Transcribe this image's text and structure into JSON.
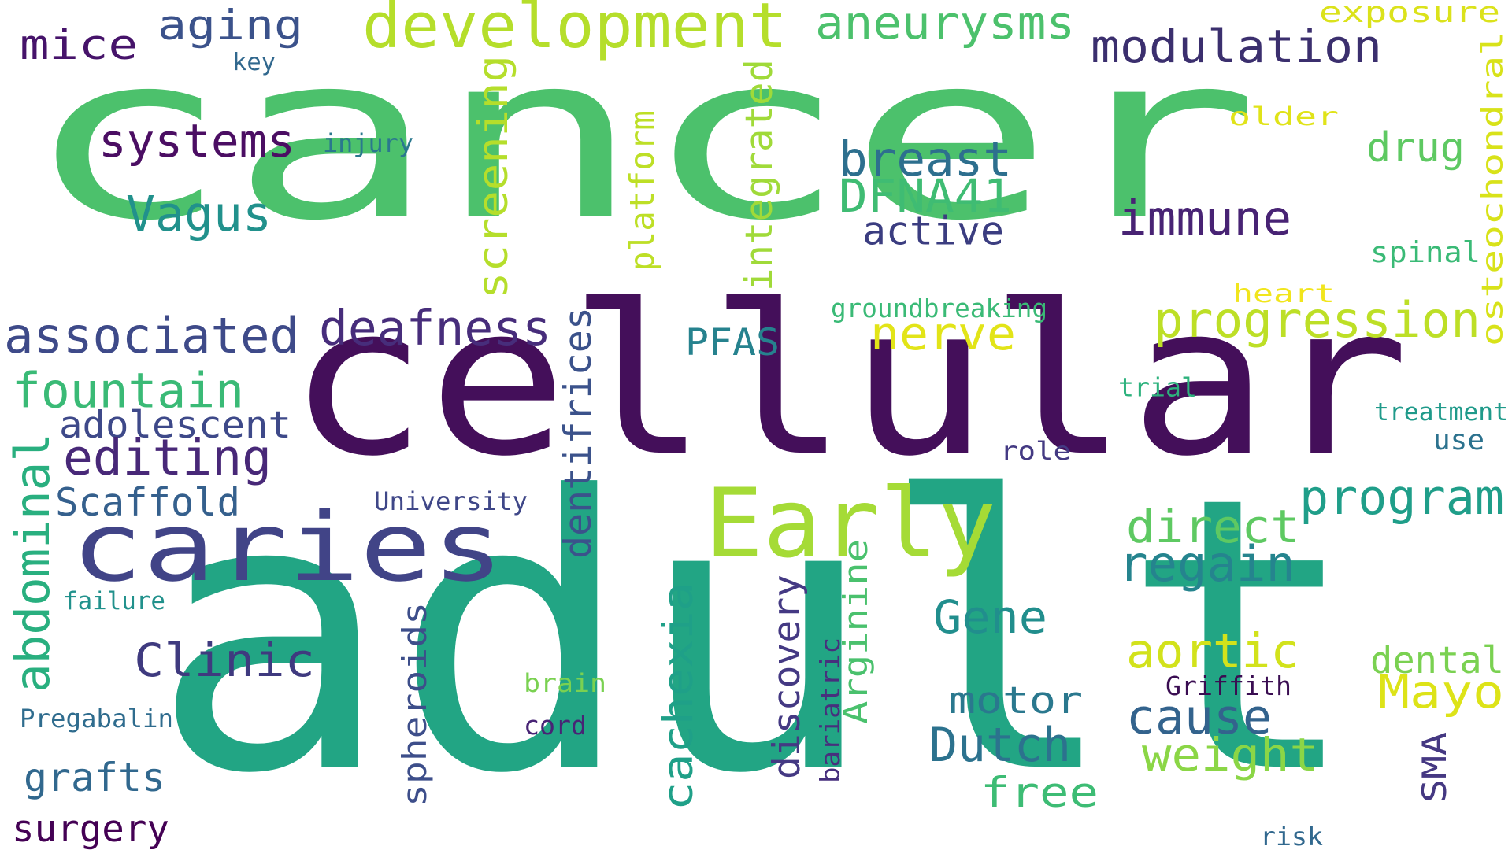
{
  "words": [
    {
      "text": "cancer",
      "color": "#4cc16c"
    },
    {
      "text": "cellular",
      "color": "#440f5a"
    },
    {
      "text": "adult",
      "color": "#22a584"
    },
    {
      "text": "caries",
      "color": "#414487"
    },
    {
      "text": "Early",
      "color": "#a5db36"
    },
    {
      "text": "development",
      "color": "#b5de2b"
    },
    {
      "text": "aneurysms",
      "color": "#4cc16c"
    },
    {
      "text": "modulation",
      "color": "#3b2f6e"
    },
    {
      "text": "exposure",
      "color": "#dbe21b"
    },
    {
      "text": "aging",
      "color": "#3b528b"
    },
    {
      "text": "mice",
      "color": "#46136a"
    },
    {
      "text": "key",
      "color": "#31688e"
    },
    {
      "text": "systems",
      "color": "#4b0e63"
    },
    {
      "text": "injury",
      "color": "#2a788e"
    },
    {
      "text": "breast",
      "color": "#2d6f8e"
    },
    {
      "text": "DFNA41",
      "color": "#3fbc73"
    },
    {
      "text": "active",
      "color": "#3b3d80"
    },
    {
      "text": "immune",
      "color": "#482374"
    },
    {
      "text": "Vagus",
      "color": "#21918c"
    },
    {
      "text": "screening",
      "color": "#b5de2b"
    },
    {
      "text": "platform",
      "color": "#bddf26"
    },
    {
      "text": "integrated",
      "color": "#a0da39"
    },
    {
      "text": "osteochondral",
      "color": "#d8e219"
    },
    {
      "text": "drug",
      "color": "#5ec962"
    },
    {
      "text": "older",
      "color": "#e0e319"
    },
    {
      "text": "spinal",
      "color": "#3aba76"
    },
    {
      "text": "heart",
      "color": "#f1e51d"
    },
    {
      "text": "groundbreaking",
      "color": "#3aba76"
    },
    {
      "text": "associated",
      "color": "#3e4a89"
    },
    {
      "text": "deafness",
      "color": "#472d7b"
    },
    {
      "text": "progression",
      "color": "#bddf26"
    },
    {
      "text": "PFAS",
      "color": "#26828e"
    },
    {
      "text": "nerve",
      "color": "#e2e418"
    },
    {
      "text": "fountain",
      "color": "#3aba76"
    },
    {
      "text": "trial",
      "color": "#2db27d"
    },
    {
      "text": "treatment",
      "color": "#1f9a8a"
    },
    {
      "text": "adolescent",
      "color": "#3e4989"
    },
    {
      "text": "dentifrices",
      "color": "#3b528b"
    },
    {
      "text": "use",
      "color": "#2c728e"
    },
    {
      "text": "role",
      "color": "#443a83"
    },
    {
      "text": "editing",
      "color": "#482878"
    },
    {
      "text": "program",
      "color": "#1f9e89"
    },
    {
      "text": "abdominal",
      "color": "#29af7f"
    },
    {
      "text": "Scaffold",
      "color": "#35608d"
    },
    {
      "text": "University",
      "color": "#3f4788"
    },
    {
      "text": "direct",
      "color": "#5ec962"
    },
    {
      "text": "regain",
      "color": "#25848e"
    },
    {
      "text": "failure",
      "color": "#21918c"
    },
    {
      "text": "Clinic",
      "color": "#3f3a7f"
    },
    {
      "text": "Gene",
      "color": "#218e8d"
    },
    {
      "text": "cachexia",
      "color": "#1fa088"
    },
    {
      "text": "discovery",
      "color": "#443983"
    },
    {
      "text": "bariatric",
      "color": "#472f7d"
    },
    {
      "text": "Arginine",
      "color": "#4ac16d"
    },
    {
      "text": "aortic",
      "color": "#d2e21b"
    },
    {
      "text": "dental",
      "color": "#7ad151"
    },
    {
      "text": "Mayo",
      "color": "#dde318"
    },
    {
      "text": "brain",
      "color": "#7ad151"
    },
    {
      "text": "Griffith",
      "color": "#3a0d52"
    },
    {
      "text": "motor",
      "color": "#2a788e"
    },
    {
      "text": "cause",
      "color": "#33638d"
    },
    {
      "text": "Pregabalin",
      "color": "#2f6c8e"
    },
    {
      "text": "cord",
      "color": "#482475"
    },
    {
      "text": "spheroids",
      "color": "#3d4e8a"
    },
    {
      "text": "Dutch",
      "color": "#2c728e"
    },
    {
      "text": "weight",
      "color": "#8bd646"
    },
    {
      "text": "SMA",
      "color": "#453882"
    },
    {
      "text": "grafts",
      "color": "#31688e"
    },
    {
      "text": "free",
      "color": "#3dbc74"
    },
    {
      "text": "surgery",
      "color": "#440154"
    },
    {
      "text": "risk",
      "color": "#31688e"
    }
  ]
}
